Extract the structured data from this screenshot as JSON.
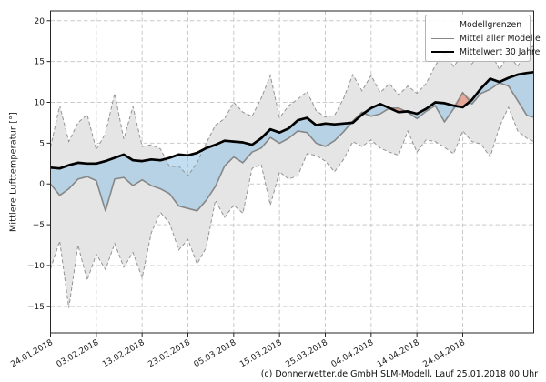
{
  "window": {
    "footer": "(c) Donnerwetter.de GmbH SLM-Modell, Lauf 25.01.2018 00 Uhr"
  },
  "chart_data": {
    "type": "line",
    "title": "",
    "xlabel": "",
    "ylabel": "Mittlere Lufttemperatur [°]",
    "grid": true,
    "legend_position": "upper right",
    "legend": [
      "Modellgrenzen",
      "Mittel aller Modelle",
      "Mittelwert 30 Jahre"
    ],
    "ylim": [
      -18.25,
      21.2
    ],
    "xlim_days": [
      0,
      105.5
    ],
    "y_ticks": [
      20,
      15,
      10,
      5,
      0,
      -5,
      -10,
      -15
    ],
    "x_tick_days": [
      0,
      10,
      20,
      30,
      40,
      50,
      60,
      70,
      80,
      90
    ],
    "x_tick_labels": [
      "24.01.2018",
      "03.02.2018",
      "13.02.2018",
      "23.02.2018",
      "05.03.2018",
      "15.03.2018",
      "25.03.2018",
      "04.04.2018",
      "14.04.2018",
      "24.04.2018"
    ],
    "days": [
      0,
      2,
      4,
      6,
      8,
      10,
      12,
      14,
      16,
      18,
      20,
      22,
      24,
      26,
      28,
      30,
      32,
      34,
      36,
      38,
      40,
      42,
      44,
      46,
      48,
      50,
      52,
      54,
      56,
      58,
      60,
      62,
      64,
      66,
      68,
      70,
      72,
      74,
      76,
      78,
      80,
      82,
      84,
      86,
      88,
      90,
      92,
      94,
      96,
      98,
      100,
      102,
      104,
      105.5
    ],
    "series": [
      {
        "name": "Modellgrenzen (obere Grenze)",
        "role": "envelope_upper",
        "style": "dashed-gray",
        "values": [
          4.5,
          9.6,
          5.2,
          7.5,
          8.5,
          4.2,
          6.2,
          11.1,
          5.5,
          9.5,
          4.6,
          4.8,
          4.3,
          2.1,
          2.2,
          1.0,
          2.6,
          5.0,
          7.2,
          8.0,
          10.0,
          8.8,
          8.3,
          10.5,
          13.3,
          8.1,
          9.6,
          10.4,
          11.3,
          9.0,
          8.2,
          8.4,
          10.5,
          13.4,
          11.4,
          13.3,
          11.2,
          12.3,
          10.9,
          12.0,
          11.1,
          12.3,
          14.5,
          16.2,
          14.4,
          15.8,
          14.7,
          16.2,
          16.3,
          14.0,
          15.8,
          14.4,
          16.5,
          16.9
        ]
      },
      {
        "name": "Modellgrenzen (untere Grenze)",
        "role": "envelope_lower",
        "style": "dashed-gray",
        "values": [
          -10.4,
          -7.0,
          -15.2,
          -7.5,
          -11.8,
          -8.6,
          -10.5,
          -7.3,
          -10.2,
          -8.4,
          -11.5,
          -6.0,
          -3.5,
          -4.8,
          -8.1,
          -6.8,
          -9.8,
          -7.8,
          -2.0,
          -4.1,
          -2.6,
          -3.6,
          1.9,
          2.4,
          -2.6,
          1.5,
          0.6,
          1.0,
          3.7,
          3.5,
          2.8,
          1.5,
          3.0,
          5.2,
          4.6,
          5.4,
          4.4,
          3.9,
          3.5,
          6.5,
          3.9,
          5.4,
          5.2,
          4.5,
          3.7,
          6.5,
          5.2,
          4.9,
          3.3,
          7.0,
          9.4,
          6.5,
          5.6,
          5.2
        ]
      },
      {
        "name": "Mittel aller Modelle",
        "role": "model_mean",
        "style": "solid-gray",
        "values": [
          0.0,
          -1.4,
          -0.6,
          0.6,
          0.9,
          0.4,
          -3.3,
          0.6,
          0.8,
          -0.2,
          0.5,
          -0.2,
          -0.6,
          -1.2,
          -2.7,
          -3.0,
          -3.3,
          -2.0,
          -0.3,
          2.2,
          3.3,
          2.6,
          3.9,
          4.4,
          5.7,
          5.0,
          5.6,
          6.5,
          6.3,
          5.0,
          4.6,
          5.3,
          6.4,
          7.7,
          8.8,
          8.3,
          8.6,
          9.3,
          9.3,
          8.8,
          8.0,
          8.9,
          9.6,
          7.6,
          9.2,
          11.2,
          9.8,
          11.1,
          11.6,
          12.4,
          12.0,
          10.2,
          8.4,
          8.2
        ]
      },
      {
        "name": "Mittelwert 30 Jahre",
        "role": "mean_30y",
        "style": "solid-black-thick",
        "values": [
          2.0,
          1.9,
          2.3,
          2.6,
          2.5,
          2.5,
          2.8,
          3.2,
          3.6,
          2.9,
          2.8,
          3.0,
          2.9,
          3.2,
          3.6,
          3.5,
          3.8,
          4.4,
          4.8,
          5.3,
          5.2,
          5.1,
          4.8,
          5.6,
          6.7,
          6.3,
          6.8,
          7.8,
          8.1,
          7.2,
          7.4,
          7.3,
          7.4,
          7.5,
          8.5,
          9.3,
          9.8,
          9.3,
          8.8,
          8.9,
          8.6,
          9.2,
          10.0,
          9.9,
          9.6,
          9.4,
          10.3,
          11.7,
          12.9,
          12.5,
          13.0,
          13.4,
          13.6,
          13.7
        ]
      }
    ],
    "colors": {
      "band_fill": "#e5e5e5",
      "below_mean_fill": "#8fc3e4",
      "above_mean_fill": "#e8735a",
      "fill_alpha": 0.55,
      "envelope_line": "#949494",
      "model_mean_line": "#878787",
      "mean30_line": "#000000",
      "grid": "#c9c9c9",
      "spine": "#262626",
      "text": "#1a1a1a"
    }
  }
}
